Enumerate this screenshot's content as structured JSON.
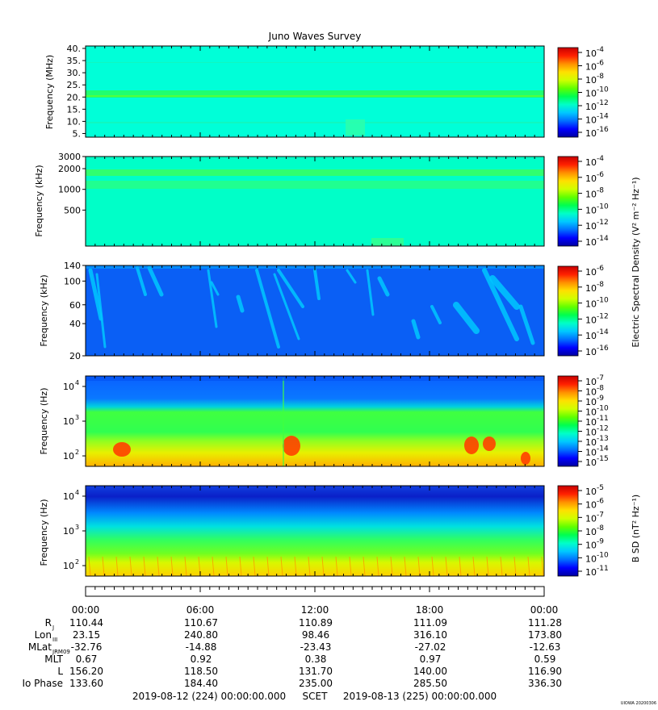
{
  "title": "Juno Waves Survey",
  "palette": [
    "#0000a0",
    "#0000ff",
    "#0070ff",
    "#00c8ff",
    "#00ffc8",
    "#00ff50",
    "#60ff00",
    "#d0ff00",
    "#ffe000",
    "#ff9000",
    "#ff2000",
    "#c80000"
  ],
  "chart_data": [
    {
      "type": "heatmap",
      "title": "",
      "ylabel": "Frequency (MHz)",
      "ylim": [
        3.5,
        41
      ],
      "yscale": "linear",
      "yticks": [
        "5.",
        "10.",
        "15.",
        "20.",
        "25.",
        "30.",
        "35.",
        "40."
      ],
      "colorbar": {
        "label": "",
        "ticks": [
          "10",
          "10",
          "10",
          "10",
          "10",
          "10",
          "10"
        ],
        "exponents": [
          "-4",
          "-6",
          "-8",
          "-10",
          "-12",
          "-14",
          "-16"
        ]
      }
    },
    {
      "type": "heatmap",
      "title": "",
      "ylabel": "Frequency (kHz)",
      "ylim": [
        150,
        3000
      ],
      "yscale": "log",
      "yticks": [
        "3000",
        "2000",
        "1000",
        "500"
      ],
      "colorbar": {
        "label": "Electric Spectral Density (V² m⁻² Hz⁻¹)",
        "ticks": [
          "10",
          "10",
          "10",
          "10",
          "10",
          "10"
        ],
        "exponents": [
          "-4",
          "-6",
          "-8",
          "-10",
          "-12",
          "-14"
        ]
      }
    },
    {
      "type": "heatmap",
      "title": "",
      "ylabel": "Frequency (kHz)",
      "ylim": [
        20,
        140
      ],
      "yscale": "log",
      "yticks": [
        "140",
        "100",
        "60",
        "40",
        "20"
      ],
      "colorbar": {
        "label": "",
        "ticks": [
          "10",
          "10",
          "10",
          "10",
          "10",
          "10"
        ],
        "exponents": [
          "-6",
          "-8",
          "-10",
          "-12",
          "-14",
          "-16"
        ]
      }
    },
    {
      "type": "heatmap",
      "title": "",
      "ylabel": "Frequency (Hz)",
      "ylim": [
        50,
        20000
      ],
      "yscale": "log",
      "yticks": [
        "10",
        "10",
        "10"
      ],
      "ytick_exponents": [
        "4",
        "3",
        "2"
      ],
      "colorbar": {
        "label": "",
        "ticks": [
          "10",
          "10",
          "10",
          "10",
          "10",
          "10",
          "10",
          "10",
          "10"
        ],
        "exponents": [
          "-7",
          "-8",
          "-9",
          "-10",
          "-11",
          "-12",
          "-13",
          "-14",
          "-15"
        ]
      }
    },
    {
      "type": "heatmap",
      "title": "",
      "ylabel": "Frequency (Hz)",
      "ylim": [
        50,
        20000
      ],
      "yscale": "log",
      "yticks": [
        "10",
        "10",
        "10"
      ],
      "ytick_exponents": [
        "4",
        "3",
        "2"
      ],
      "colorbar": {
        "label": "B SD (nT² Hz⁻¹)",
        "ticks": [
          "10",
          "10",
          "10",
          "10",
          "10",
          "10",
          "10"
        ],
        "exponents": [
          "-5",
          "-6",
          "-7",
          "-8",
          "-9",
          "-10",
          "-11"
        ]
      }
    }
  ],
  "ephemeris": {
    "times": [
      "00:00",
      "06:00",
      "12:00",
      "18:00",
      "00:00"
    ],
    "rows": [
      {
        "label": "R",
        "sub": "J",
        "values": [
          "110.44",
          "110.67",
          "110.89",
          "111.09",
          "111.28"
        ]
      },
      {
        "label": "Lon",
        "sub": "III",
        "values": [
          "23.15",
          "240.80",
          "98.46",
          "316.10",
          "173.80"
        ]
      },
      {
        "label": "MLat",
        "sub": "JRM09",
        "values": [
          "-32.76",
          "-14.88",
          "-23.43",
          "-27.02",
          "-12.63"
        ]
      },
      {
        "label": "MLT",
        "sub": "",
        "values": [
          "0.67",
          "0.92",
          "0.38",
          "0.97",
          "0.59"
        ]
      },
      {
        "label": "L",
        "sub": "",
        "values": [
          "156.20",
          "118.50",
          "131.70",
          "140.00",
          "116.90"
        ]
      },
      {
        "label": "Io Phase",
        "sub": "",
        "values": [
          "133.60",
          "184.40",
          "235.00",
          "285.50",
          "336.30"
        ]
      }
    ]
  },
  "footer": {
    "start": "2019-08-12 (224) 00:00:00.000",
    "scet": "SCET",
    "end": "2019-08-13 (225) 00:00:00.000",
    "credit": "UIOWA 20200306"
  }
}
